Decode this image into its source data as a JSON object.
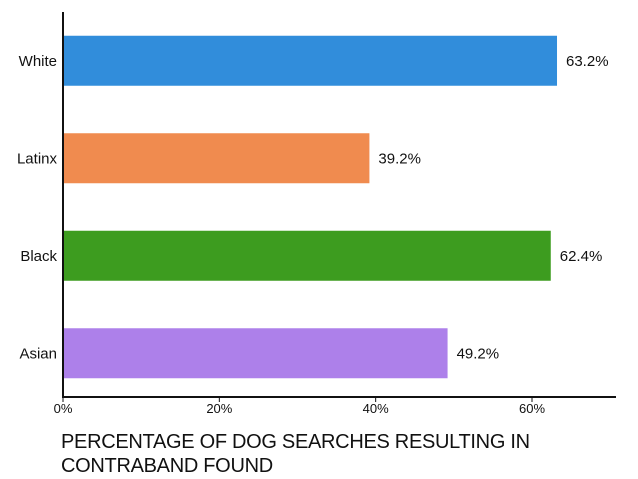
{
  "chart_data": {
    "type": "bar",
    "orientation": "horizontal",
    "categories": [
      "White",
      "Latinx",
      "Black",
      "Asian"
    ],
    "values": [
      63.2,
      39.2,
      62.4,
      49.2
    ],
    "data_labels": [
      "63.2%",
      "39.2%",
      "62.4%",
      "49.2%"
    ],
    "colors": [
      "#318ddb",
      "#f08b4f",
      "#3d9c1f",
      "#ad80ea"
    ],
    "x_ticks": [
      0,
      20,
      40,
      60
    ],
    "x_tick_labels": [
      "0%",
      "20%",
      "40%",
      "60%"
    ],
    "xlim": [
      0,
      72
    ],
    "xlabel": "PERCENTAGE OF DOG SEARCHES RESULTING IN CONTRABAND FOUND",
    "ylabel": "",
    "title": "",
    "grid": false,
    "legend": "none"
  }
}
